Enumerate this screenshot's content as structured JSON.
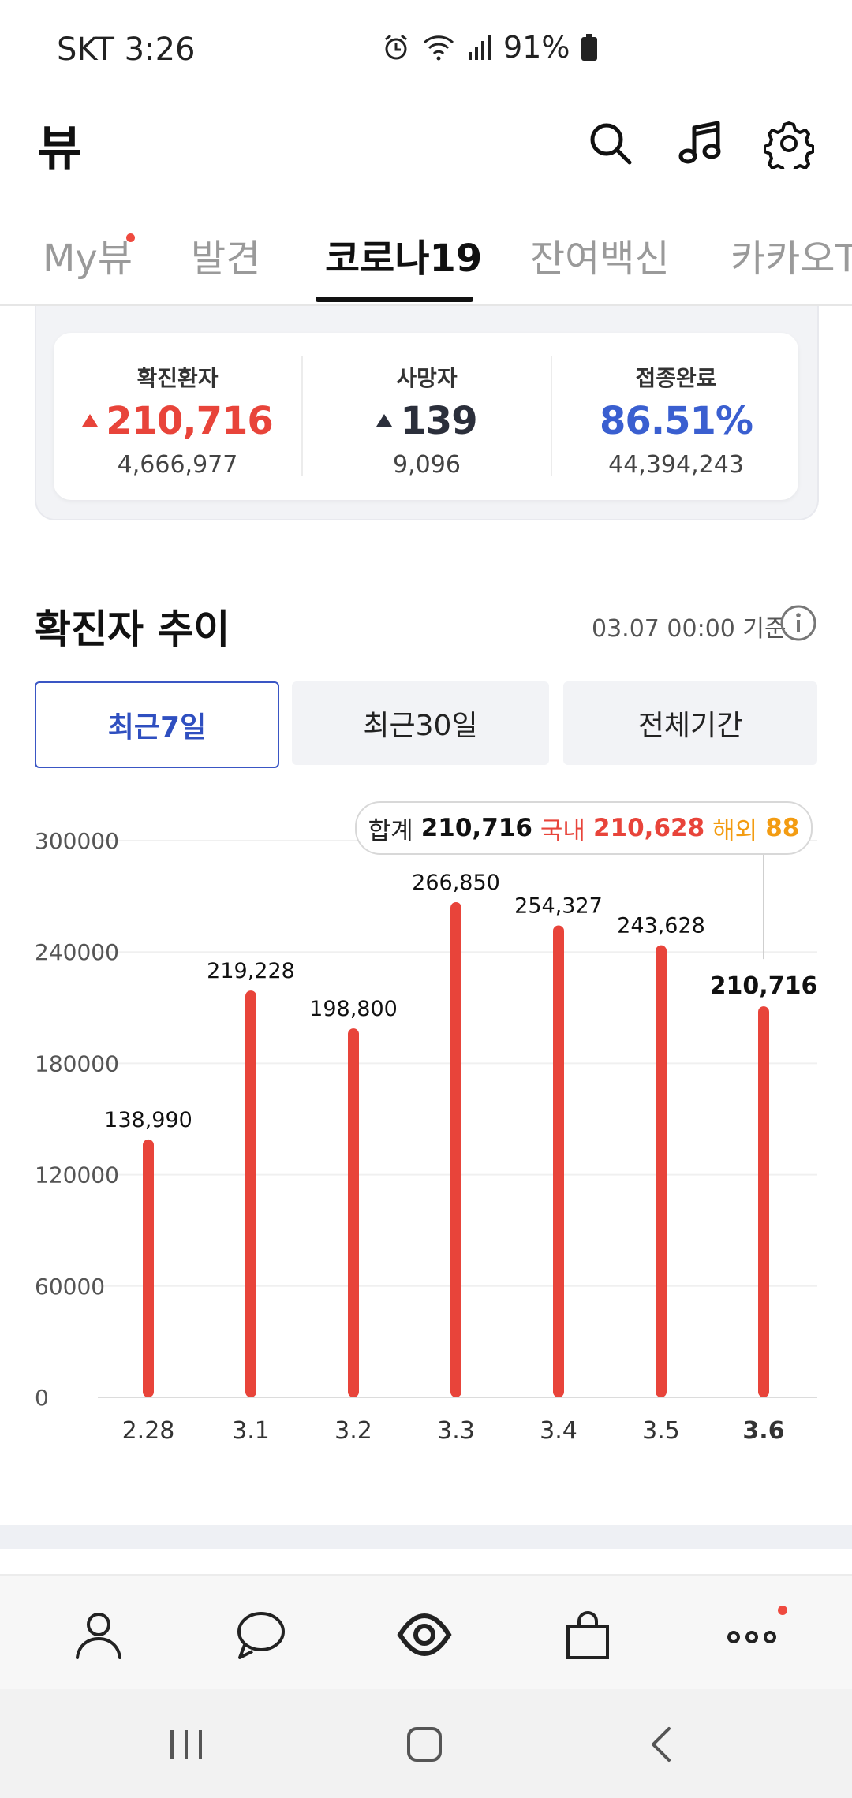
{
  "status_bar": {
    "carrier_time": "SKT 3:26",
    "battery": "91%",
    "icons": [
      "alarm-icon",
      "wifi-icon",
      "signal-icon",
      "battery-icon"
    ]
  },
  "header": {
    "title": "뷰",
    "icons": [
      "search-icon",
      "music-icon",
      "settings-icon"
    ]
  },
  "tabs": [
    {
      "label": "My뷰",
      "active": false,
      "has_dot": true
    },
    {
      "label": "발견",
      "active": false
    },
    {
      "label": "코로나19",
      "active": true
    },
    {
      "label": "잔여백신",
      "active": false
    },
    {
      "label": "카카오T",
      "active": false
    }
  ],
  "stats": [
    {
      "label": "확진환자",
      "value": "210,716",
      "total": "4,666,977",
      "color": "#e8443a",
      "arrow_color": "#e8443a"
    },
    {
      "label": "사망자",
      "value": "139",
      "total": "9,096",
      "color": "#2b2f3b",
      "arrow_color": "#2b2f3b"
    },
    {
      "label": "접종완료",
      "value": "86.51%",
      "total": "44,394,243",
      "color": "#3a5fd0"
    }
  ],
  "section": {
    "title": "확진자 추이",
    "basis": "03.07 00:00 기준"
  },
  "range_buttons": [
    {
      "label": "최근7일",
      "active": true
    },
    {
      "label": "최근30일",
      "active": false
    },
    {
      "label": "전체기간",
      "active": false
    }
  ],
  "tooltip": {
    "total_label": "합계",
    "total_value": "210,716",
    "domestic_label": "국내",
    "domestic_value": "210,628",
    "overseas_label": "해외",
    "overseas_value": "88"
  },
  "chart_data": {
    "type": "bar",
    "categories": [
      "2.28",
      "3.1",
      "3.2",
      "3.3",
      "3.4",
      "3.5",
      "3.6"
    ],
    "values": [
      138990,
      219228,
      198800,
      266850,
      254327,
      243628,
      210716
    ],
    "value_labels": [
      "138,990",
      "219,228",
      "198,800",
      "266,850",
      "254,327",
      "243,628",
      "210,716"
    ],
    "y_ticks": [
      "300000",
      "240000",
      "180000",
      "120000",
      "60000",
      "0"
    ],
    "ylim": [
      0,
      300000
    ],
    "highlighted_index": 6,
    "bar_color": "#e8443a",
    "grid": true
  },
  "bottom_nav": {
    "icons": [
      "profile-icon",
      "chat-icon",
      "view-icon",
      "shopping-icon",
      "more-icon"
    ]
  },
  "system_nav": {
    "icons": [
      "recent-apps-icon",
      "home-icon",
      "back-icon"
    ]
  }
}
